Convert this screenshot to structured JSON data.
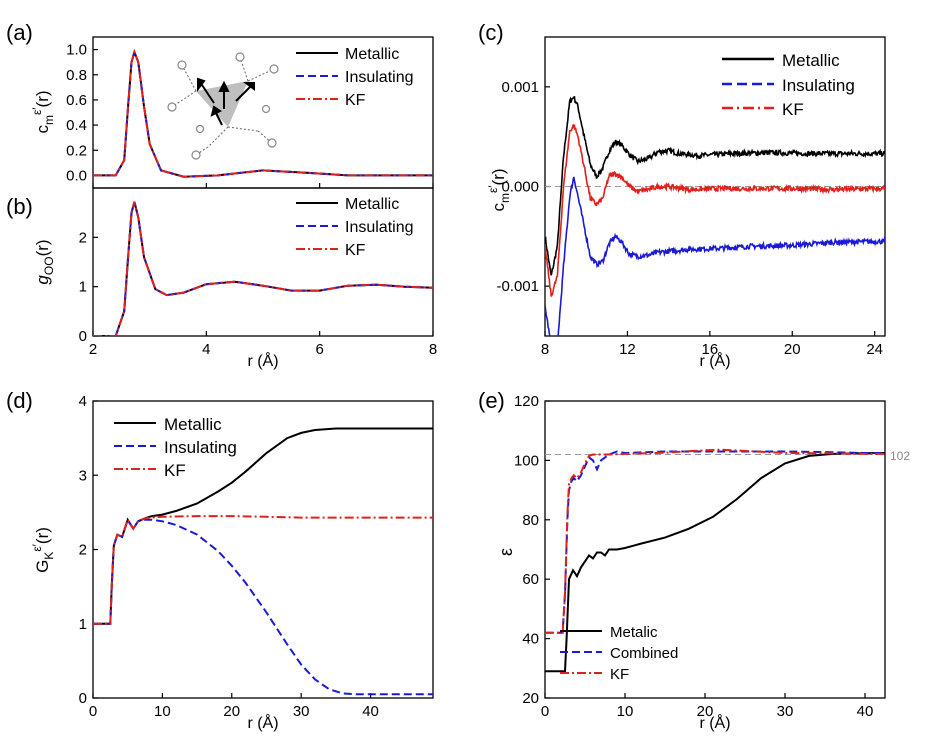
{
  "figure": {
    "panels": [
      "(a)",
      "(b)",
      "(c)",
      "(d)",
      "(e)"
    ]
  },
  "legend_labels": {
    "metallic": "Metallic",
    "insulating": "Insulating",
    "kf": "KF",
    "metalic": "Metalic",
    "combined": "Combined"
  },
  "colors": {
    "metallic": "#000000",
    "insulating": "#1a1ad6",
    "kf": "#e0201b",
    "reference": "#999999"
  },
  "chart_data": [
    {
      "panel": "(a)",
      "type": "line",
      "ylabel": "c_m^ε′(r)",
      "xlim": [
        2,
        8
      ],
      "ylim": [
        -0.1,
        1.1
      ],
      "yticks": [
        "0.0",
        "0.2",
        "0.4",
        "0.6",
        "0.8",
        "1.0"
      ],
      "series": [
        {
          "name": "Metallic",
          "x": [
            2.0,
            2.4,
            2.55,
            2.62,
            2.68,
            2.73,
            2.8,
            2.9,
            3.0,
            3.2,
            3.6,
            4.2,
            5.0,
            5.8,
            6.5,
            8.0
          ],
          "y": [
            0.0,
            0.0,
            0.12,
            0.55,
            0.9,
            0.98,
            0.9,
            0.55,
            0.25,
            0.04,
            -0.01,
            0.0,
            0.04,
            0.02,
            0.0,
            0.0
          ]
        },
        {
          "name": "Insulating",
          "same_as": "Metallic"
        },
        {
          "name": "KF",
          "same_as": "Metallic"
        }
      ],
      "annotation": "inset: water-molecule dipole network (decorative)"
    },
    {
      "panel": "(b)",
      "type": "line",
      "xlabel": "r (Å)",
      "ylabel": "g_OO(r)",
      "xlim": [
        2,
        8
      ],
      "ylim": [
        0,
        3
      ],
      "xticks": [
        "2",
        "4",
        "6",
        "8"
      ],
      "yticks": [
        "0",
        "1",
        "2"
      ],
      "series": [
        {
          "name": "Metallic",
          "x": [
            2.0,
            2.4,
            2.55,
            2.62,
            2.68,
            2.73,
            2.8,
            2.9,
            3.1,
            3.3,
            3.6,
            4.0,
            4.5,
            5.0,
            5.5,
            6.0,
            6.5,
            7.0,
            7.5,
            8.0
          ],
          "y": [
            0.0,
            0.0,
            0.5,
            1.6,
            2.5,
            2.72,
            2.4,
            1.6,
            0.95,
            0.83,
            0.88,
            1.05,
            1.1,
            1.02,
            0.92,
            0.92,
            1.02,
            1.04,
            1.0,
            0.98
          ]
        },
        {
          "name": "Insulating",
          "same_as": "Metallic"
        },
        {
          "name": "KF",
          "same_as": "Metallic"
        }
      ]
    },
    {
      "panel": "(c)",
      "type": "line",
      "xlabel": "r (Å)",
      "ylabel": "c_m^ε′(r)",
      "xlim": [
        8,
        24.5
      ],
      "ylim": [
        -0.0015,
        0.0015
      ],
      "xticks": [
        "8",
        "12",
        "16",
        "20",
        "24"
      ],
      "yticks": [
        "-0.001",
        "0.000",
        "0.001"
      ],
      "reference_line": 0.0,
      "series": [
        {
          "name": "Metallic",
          "x": [
            8.0,
            8.3,
            8.6,
            8.9,
            9.2,
            9.4,
            9.6,
            9.9,
            10.2,
            10.5,
            10.8,
            11.1,
            11.4,
            11.7,
            12.1,
            12.5,
            13.0,
            13.5,
            14.0,
            14.5,
            15.5,
            17.0,
            19.0,
            21.0,
            23.0,
            24.5
          ],
          "y": [
            -0.0005,
            -0.0009,
            -0.0006,
            0.0003,
            0.00085,
            0.0009,
            0.0008,
            0.0005,
            0.00022,
            0.0001,
            0.00018,
            0.00035,
            0.00045,
            0.00042,
            0.00032,
            0.00025,
            0.00028,
            0.00035,
            0.00036,
            0.00033,
            0.00031,
            0.00033,
            0.00034,
            0.00033,
            0.00033,
            0.00033
          ]
        },
        {
          "name": "Insulating",
          "x": [
            8.0,
            8.3,
            8.6,
            8.9,
            9.2,
            9.4,
            9.6,
            9.9,
            10.2,
            10.5,
            10.8,
            11.1,
            11.4,
            11.7,
            12.1,
            12.5,
            13.0,
            13.5,
            14.0,
            15.0,
            16.5,
            18.0,
            20.0,
            22.0,
            24.5
          ],
          "y": [
            -0.0012,
            -0.0016,
            -0.0016,
            -0.0008,
            -0.0001,
            0.0001,
            -0.0001,
            -0.0004,
            -0.0007,
            -0.00078,
            -0.00075,
            -0.00058,
            -0.0005,
            -0.00055,
            -0.00068,
            -0.0007,
            -0.00069,
            -0.00066,
            -0.00065,
            -0.00063,
            -0.00062,
            -0.0006,
            -0.00059,
            -0.00056,
            -0.00055
          ]
        },
        {
          "name": "KF",
          "x": [
            8.0,
            8.3,
            8.6,
            8.9,
            9.2,
            9.4,
            9.6,
            9.9,
            10.2,
            10.5,
            10.8,
            11.1,
            11.4,
            11.7,
            12.1,
            12.5,
            13.0,
            13.5,
            14.0,
            15.0,
            16.5,
            18.0,
            20.0,
            22.0,
            24.5
          ],
          "y": [
            -0.0006,
            -0.0011,
            -0.0009,
            0.0,
            0.00055,
            0.00062,
            0.0005,
            0.0002,
            -0.00012,
            -0.00018,
            -0.00012,
            0.0001,
            0.00013,
            0.0001,
            0.0,
            -5e-05,
            -3e-05,
            0.0,
            0.0,
            -3e-05,
            -2e-05,
            -2e-05,
            -2e-05,
            -3e-05,
            -2e-05
          ]
        }
      ]
    },
    {
      "panel": "(d)",
      "type": "line",
      "xlabel": "r (Å)",
      "ylabel": "G_K^ε′(r)",
      "xlim": [
        0,
        49
      ],
      "ylim": [
        0,
        4
      ],
      "xticks": [
        "0",
        "10",
        "20",
        "30",
        "40"
      ],
      "yticks": [
        "0",
        "1",
        "2",
        "3",
        "4"
      ],
      "series": [
        {
          "name": "Metallic",
          "x": [
            0,
            2.5,
            2.7,
            3.0,
            3.5,
            4.2,
            5.0,
            5.8,
            6.5,
            7.5,
            8.5,
            10,
            12,
            15,
            18,
            20,
            22,
            25,
            28,
            30,
            32,
            35,
            38,
            42,
            49
          ],
          "y": [
            1.0,
            1.0,
            1.5,
            2.05,
            2.2,
            2.17,
            2.4,
            2.28,
            2.38,
            2.42,
            2.45,
            2.47,
            2.52,
            2.62,
            2.78,
            2.9,
            3.05,
            3.3,
            3.5,
            3.57,
            3.61,
            3.63,
            3.63,
            3.63,
            3.63
          ]
        },
        {
          "name": "Insulating",
          "x": [
            0,
            2.5,
            2.7,
            3.0,
            3.5,
            4.2,
            5.0,
            5.8,
            6.5,
            7.5,
            8.5,
            10,
            12,
            15,
            18,
            20,
            22,
            25,
            28,
            30,
            32,
            34,
            36,
            38,
            40,
            42,
            49
          ],
          "y": [
            1.0,
            1.0,
            1.5,
            2.05,
            2.2,
            2.17,
            2.4,
            2.28,
            2.38,
            2.4,
            2.4,
            2.38,
            2.33,
            2.2,
            1.98,
            1.78,
            1.55,
            1.15,
            0.72,
            0.45,
            0.25,
            0.12,
            0.06,
            0.05,
            0.05,
            0.05,
            0.05
          ]
        },
        {
          "name": "KF",
          "x": [
            0,
            2.5,
            2.7,
            3.0,
            3.5,
            4.2,
            5.0,
            5.8,
            6.5,
            7.5,
            8.5,
            10,
            15,
            20,
            25,
            30,
            35,
            40,
            49
          ],
          "y": [
            1.0,
            1.0,
            1.5,
            2.05,
            2.2,
            2.17,
            2.4,
            2.28,
            2.38,
            2.42,
            2.43,
            2.44,
            2.45,
            2.45,
            2.44,
            2.43,
            2.43,
            2.43,
            2.43
          ]
        }
      ]
    },
    {
      "panel": "(e)",
      "type": "line",
      "xlabel": "r (Å)",
      "ylabel": "ε",
      "xlim": [
        0,
        42.5
      ],
      "ylim": [
        20,
        120
      ],
      "xticks": [
        "0",
        "10",
        "20",
        "30",
        "40"
      ],
      "yticks": [
        "20",
        "40",
        "60",
        "80",
        "100",
        "120"
      ],
      "reference_line": 102,
      "reference_label": "102",
      "series": [
        {
          "name": "Metalic",
          "x": [
            0,
            2.5,
            2.7,
            3.0,
            3.5,
            4.0,
            4.5,
            5.0,
            5.5,
            6.0,
            6.5,
            7.0,
            7.5,
            8.0,
            9.0,
            10,
            12,
            15,
            18,
            21,
            24,
            27,
            30,
            33,
            36,
            39,
            42.5
          ],
          "y": [
            29,
            29,
            40,
            60,
            63,
            61,
            64,
            66,
            68,
            67,
            69,
            69,
            68,
            70,
            70,
            70.5,
            72,
            74,
            77,
            81,
            87,
            94,
            99,
            101.5,
            102.2,
            102.4,
            102.5
          ]
        },
        {
          "name": "Combined",
          "x": [
            0,
            2.2,
            2.5,
            2.8,
            3.0,
            3.3,
            3.6,
            4.0,
            4.5,
            5.0,
            5.5,
            6.0,
            6.5,
            7.0,
            7.5,
            8.0,
            9.0,
            10,
            15,
            20,
            25,
            30,
            35,
            40,
            42.5
          ],
          "y": [
            42,
            42,
            55,
            80,
            90,
            93,
            94,
            93,
            95,
            98,
            101,
            100,
            97,
            100,
            101,
            102,
            103,
            102.5,
            103,
            103,
            103,
            103,
            102.8,
            102.5,
            102.5
          ]
        },
        {
          "name": "KF",
          "x": [
            0,
            2.2,
            2.5,
            2.8,
            3.0,
            3.3,
            3.6,
            4.0,
            4.5,
            5.0,
            5.5,
            6.0,
            7.0,
            8.0,
            10,
            15,
            20,
            22,
            25,
            30,
            35,
            40,
            42.5
          ],
          "y": [
            42,
            42,
            55,
            82,
            92,
            94,
            95,
            94,
            96,
            99,
            101.5,
            102,
            102,
            102,
            102.2,
            102.6,
            103.4,
            103.6,
            103.2,
            102.5,
            102.4,
            102.2,
            102.2
          ]
        }
      ]
    }
  ]
}
